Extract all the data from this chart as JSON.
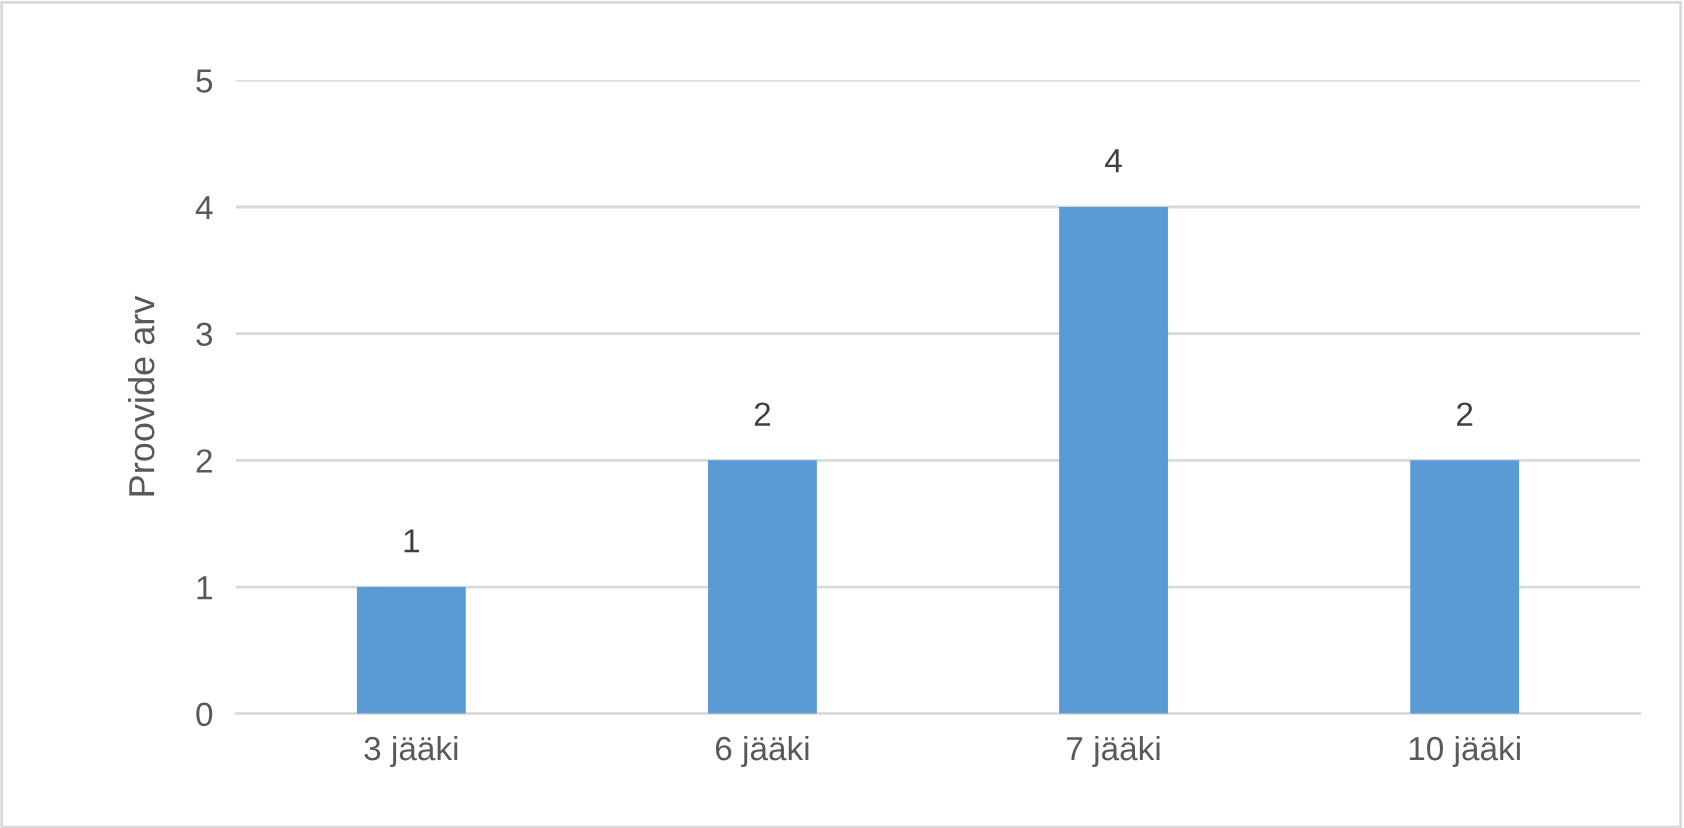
{
  "chart_data": {
    "type": "bar",
    "ylabel": "Proovide arv",
    "categories": [
      "3 jääki",
      "6 jääki",
      "7 jääki",
      "10 jääki"
    ],
    "values": [
      1,
      2,
      4,
      2
    ],
    "color": "#5b9bd5",
    "ylim": [
      0,
      5
    ],
    "yticks": [
      0,
      1,
      2,
      3,
      4,
      5
    ],
    "grid": "y",
    "data_labels": true,
    "legend": false
  }
}
